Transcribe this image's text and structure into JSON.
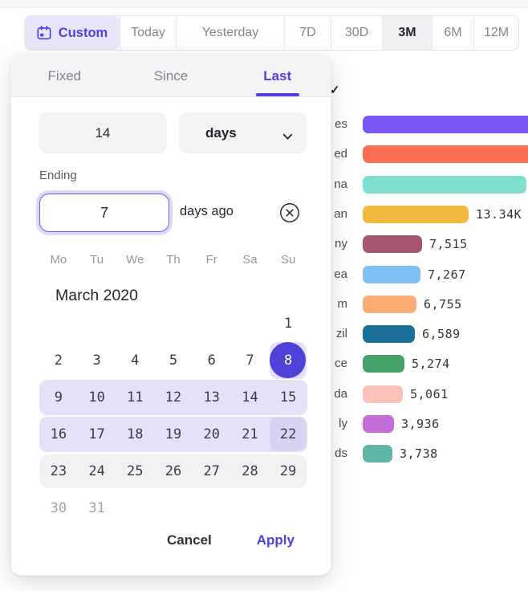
{
  "colors": {
    "accent": "#4c3fe4",
    "selected_day_circle": "#4e42d8",
    "range_band": "#e4e1f8",
    "range_end_cell": "#d7d3f2",
    "hover_week_band": "#f1f1f3",
    "custom_chip_bg": "#e9e6fb"
  },
  "top_bar": {
    "custom_label": "Custom",
    "presets": [
      "Today",
      "Yesterday",
      "7D",
      "30D",
      "3M",
      "6M",
      "12M"
    ],
    "active_preset": "3M"
  },
  "panel": {
    "tabs": [
      "Fixed",
      "Since",
      "Last"
    ],
    "active_tab": "Last",
    "form": {
      "count_value": "14",
      "unit_value": "days",
      "ending_label": "Ending",
      "ending_value": "7",
      "ending_suffix": "days ago"
    },
    "calendar": {
      "month_title": "March 2020",
      "weekdays": [
        "Mo",
        "Tu",
        "We",
        "Th",
        "Fr",
        "Sa",
        "Su"
      ],
      "rows": [
        {
          "band": "none",
          "cells": [
            "",
            "",
            "",
            "",
            "",
            "",
            "1"
          ]
        },
        {
          "band": "none",
          "cells": [
            "2",
            "3",
            "4",
            "5",
            "6",
            "7",
            "8"
          ],
          "selected": "8"
        },
        {
          "band": "range",
          "cells": [
            "9",
            "10",
            "11",
            "12",
            "13",
            "14",
            "15"
          ]
        },
        {
          "band": "range",
          "cells": [
            "16",
            "17",
            "18",
            "19",
            "20",
            "21",
            "22"
          ],
          "range_end": "22"
        },
        {
          "band": "gray",
          "cells": [
            "23",
            "24",
            "25",
            "26",
            "27",
            "28",
            "29"
          ]
        },
        {
          "band": "none",
          "cells": [
            "30",
            "31",
            "",
            "",
            "",
            "",
            ""
          ],
          "disabled": [
            "30",
            "31"
          ]
        }
      ]
    },
    "footer": {
      "cancel_label": "Cancel",
      "apply_label": "Apply"
    }
  },
  "background": {
    "checkmark": "✓"
  },
  "chart_data": {
    "type": "bar",
    "orientation": "horizontal",
    "rows": [
      {
        "label_fragment": "es",
        "value": null,
        "display": "",
        "color": "#7a57f6",
        "cut": true
      },
      {
        "label_fragment": "ed",
        "value": null,
        "display": "",
        "color": "#fc6f53",
        "cut": true
      },
      {
        "label_fragment": "na",
        "value": null,
        "display": "",
        "color": "#7fdfd0",
        "cut": true
      },
      {
        "label_fragment": "an",
        "value": 13340,
        "display": "13.34K",
        "color": "#f2b93f"
      },
      {
        "label_fragment": "ny",
        "value": 7515,
        "display": "7,515",
        "color": "#a65670"
      },
      {
        "label_fragment": "ea",
        "value": 7267,
        "display": "7,267",
        "color": "#7fc0f4"
      },
      {
        "label_fragment": "m",
        "value": 6755,
        "display": "6,755",
        "color": "#fcab72"
      },
      {
        "label_fragment": "zil",
        "value": 6589,
        "display": "6,589",
        "color": "#19719a"
      },
      {
        "label_fragment": "ce",
        "value": 5274,
        "display": "5,274",
        "color": "#46a069"
      },
      {
        "label_fragment": "da",
        "value": 5061,
        "display": "5,061",
        "color": "#f9c3b9"
      },
      {
        "label_fragment": "ly",
        "value": 3936,
        "display": "3,936",
        "color": "#c46edb"
      },
      {
        "label_fragment": "ds",
        "value": 3738,
        "display": "3,738",
        "color": "#5fb6a9"
      }
    ]
  }
}
